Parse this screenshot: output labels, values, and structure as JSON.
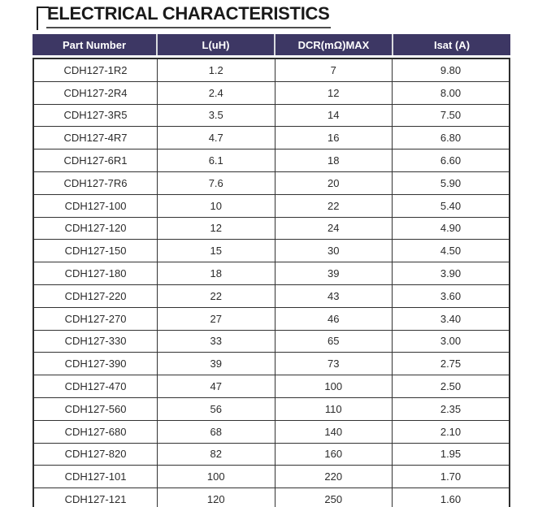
{
  "page": {
    "title": "ELECTRICAL CHARACTERISTICS"
  },
  "colors": {
    "header_background": "#3D3764",
    "header_text": "#FFFFFF",
    "title_text": "#1A1A1A",
    "body_text": "#2B2B2B",
    "table_border": "#333333"
  },
  "table": {
    "headers": [
      "Part Number",
      "L(uH)",
      "DCR(mΩ)MAX",
      "Isat (A)"
    ],
    "rows": [
      {
        "part": "CDH127-1R2",
        "l": "1.2",
        "dcr": "7",
        "isat": "9.80"
      },
      {
        "part": "CDH127-2R4",
        "l": "2.4",
        "dcr": "12",
        "isat": "8.00"
      },
      {
        "part": "CDH127-3R5",
        "l": "3.5",
        "dcr": "14",
        "isat": "7.50"
      },
      {
        "part": "CDH127-4R7",
        "l": "4.7",
        "dcr": "16",
        "isat": "6.80"
      },
      {
        "part": "CDH127-6R1",
        "l": "6.1",
        "dcr": "18",
        "isat": "6.60"
      },
      {
        "part": "CDH127-7R6",
        "l": "7.6",
        "dcr": "20",
        "isat": "5.90"
      },
      {
        "part": "CDH127-100",
        "l": "10",
        "dcr": "22",
        "isat": "5.40"
      },
      {
        "part": "CDH127-120",
        "l": "12",
        "dcr": "24",
        "isat": "4.90"
      },
      {
        "part": "CDH127-150",
        "l": "15",
        "dcr": "30",
        "isat": "4.50"
      },
      {
        "part": "CDH127-180",
        "l": "18",
        "dcr": "39",
        "isat": "3.90"
      },
      {
        "part": "CDH127-220",
        "l": "22",
        "dcr": "43",
        "isat": "3.60"
      },
      {
        "part": "CDH127-270",
        "l": "27",
        "dcr": "46",
        "isat": "3.40"
      },
      {
        "part": "CDH127-330",
        "l": "33",
        "dcr": "65",
        "isat": "3.00"
      },
      {
        "part": "CDH127-390",
        "l": "39",
        "dcr": "73",
        "isat": "2.75"
      },
      {
        "part": "CDH127-470",
        "l": "47",
        "dcr": "100",
        "isat": "2.50"
      },
      {
        "part": "CDH127-560",
        "l": "56",
        "dcr": "110",
        "isat": "2.35"
      },
      {
        "part": "CDH127-680",
        "l": "68",
        "dcr": "140",
        "isat": "2.10"
      },
      {
        "part": "CDH127-820",
        "l": "82",
        "dcr": "160",
        "isat": "1.95"
      },
      {
        "part": "CDH127-101",
        "l": "100",
        "dcr": "220",
        "isat": "1.70"
      },
      {
        "part": "CDH127-121",
        "l": "120",
        "dcr": "250",
        "isat": "1.60"
      }
    ]
  }
}
